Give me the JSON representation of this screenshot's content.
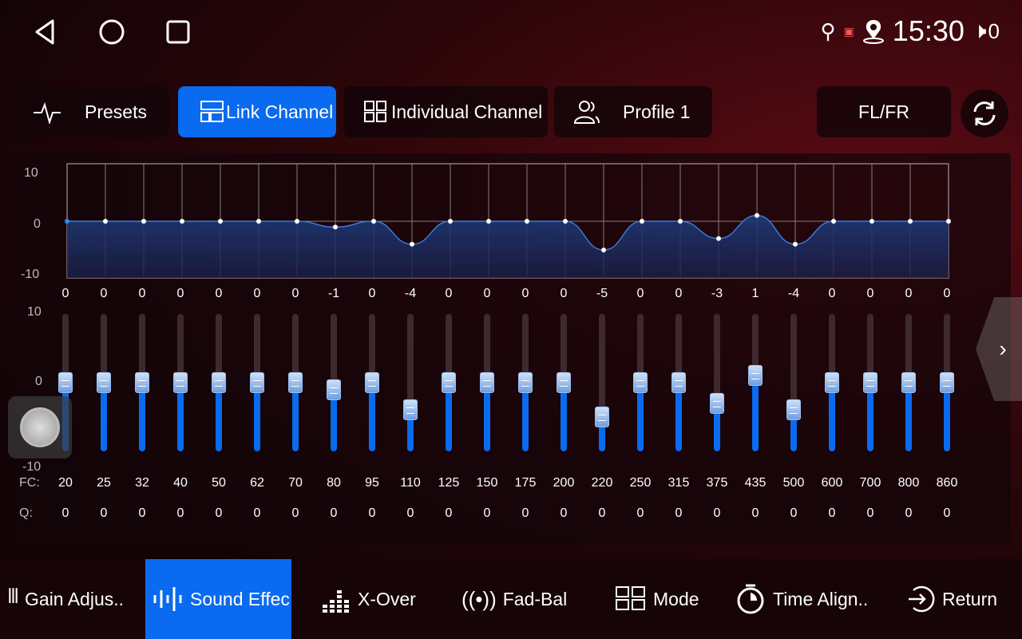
{
  "status": {
    "time": "15:30",
    "volume": "0"
  },
  "tabs": {
    "presets": "Presets",
    "link_channel": "Link Channel",
    "individual_channel": "Individual Channel",
    "profile": "Profile 1",
    "channel": "FL/FR"
  },
  "graph": {
    "y_labels": [
      "10",
      "0",
      "-10"
    ]
  },
  "slider_labels": {
    "top": "10",
    "mid": "0",
    "bottom": "-10"
  },
  "row_labels": {
    "fc": "FC:",
    "q": "Q:"
  },
  "bands": [
    {
      "fc": "20",
      "gain": 0,
      "q": "0"
    },
    {
      "fc": "25",
      "gain": 0,
      "q": "0"
    },
    {
      "fc": "32",
      "gain": 0,
      "q": "0"
    },
    {
      "fc": "40",
      "gain": 0,
      "q": "0"
    },
    {
      "fc": "50",
      "gain": 0,
      "q": "0"
    },
    {
      "fc": "62",
      "gain": 0,
      "q": "0"
    },
    {
      "fc": "70",
      "gain": 0,
      "q": "0"
    },
    {
      "fc": "80",
      "gain": -1,
      "q": "0"
    },
    {
      "fc": "95",
      "gain": 0,
      "q": "0"
    },
    {
      "fc": "110",
      "gain": -4,
      "q": "0"
    },
    {
      "fc": "125",
      "gain": 0,
      "q": "0"
    },
    {
      "fc": "150",
      "gain": 0,
      "q": "0"
    },
    {
      "fc": "175",
      "gain": 0,
      "q": "0"
    },
    {
      "fc": "200",
      "gain": 0,
      "q": "0"
    },
    {
      "fc": "220",
      "gain": -5,
      "q": "0"
    },
    {
      "fc": "250",
      "gain": 0,
      "q": "0"
    },
    {
      "fc": "315",
      "gain": 0,
      "q": "0"
    },
    {
      "fc": "375",
      "gain": -3,
      "q": "0"
    },
    {
      "fc": "435",
      "gain": 1,
      "q": "0"
    },
    {
      "fc": "500",
      "gain": -4,
      "q": "0"
    },
    {
      "fc": "600",
      "gain": 0,
      "q": "0"
    },
    {
      "fc": "700",
      "gain": 0,
      "q": "0"
    },
    {
      "fc": "800",
      "gain": 0,
      "q": "0"
    },
    {
      "fc": "860",
      "gain": 0,
      "q": "0"
    }
  ],
  "bottom_nav": [
    "Gain Adjus..",
    "Sound Effec",
    "X-Over",
    "Fad-Bal",
    "Mode",
    "Time Align..",
    "Return"
  ],
  "colors": {
    "accent": "#0a6af0",
    "background": "#2a0609"
  }
}
